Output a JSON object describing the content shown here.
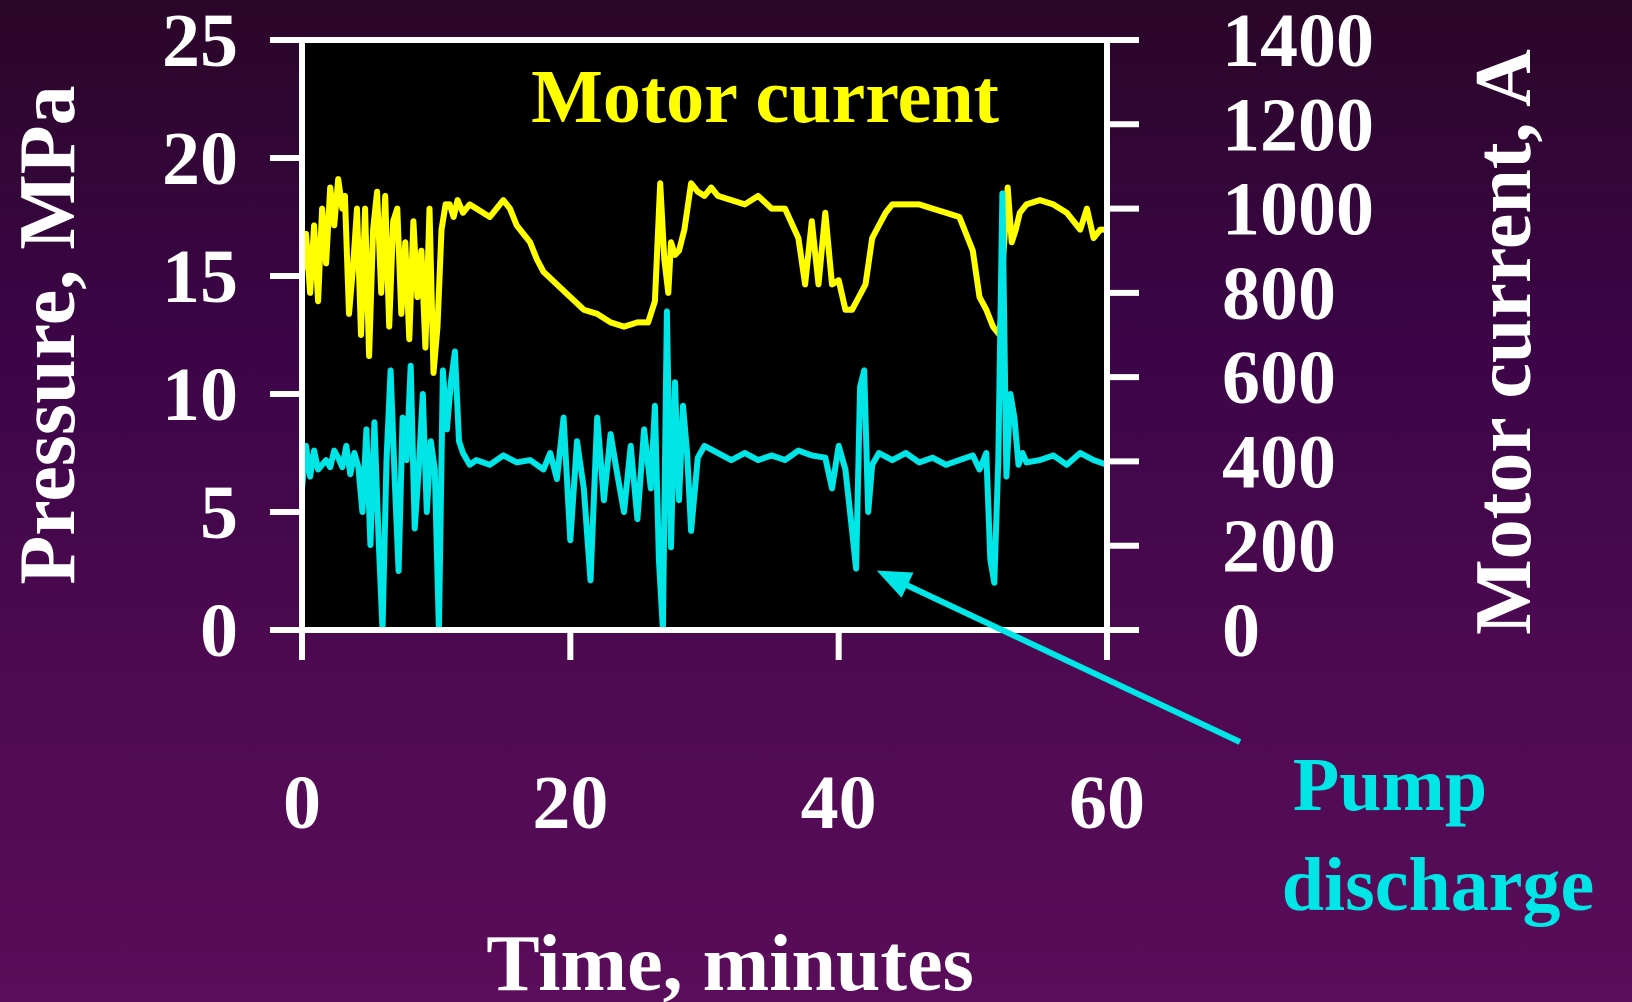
{
  "chart_data": {
    "type": "line",
    "title": "",
    "xlabel": "Time, minutes",
    "ylabel_left": "Pressure, MPa",
    "ylabel_right": "Motor current, A",
    "xlim": [
      0,
      60
    ],
    "ylim_left": [
      0,
      25
    ],
    "ylim_right": [
      0,
      1400
    ],
    "x_ticks": [
      0,
      20,
      40,
      60
    ],
    "y_ticks_left": [
      0,
      5,
      10,
      15,
      20,
      25
    ],
    "y_ticks_right": [
      0,
      200,
      400,
      600,
      800,
      1000,
      1200,
      1400
    ],
    "grid": false,
    "colors": {
      "plot_background": "#000000",
      "axes": "#ffffff",
      "text": "#ffffff",
      "motor_current": "#ffff00",
      "pump_discharge": "#00e5e5",
      "page_background": "#4a0a50"
    },
    "annotations": [
      {
        "text": "Motor current",
        "color": "#ffff00"
      },
      {
        "text_lines": [
          "Pump",
          "discharge"
        ],
        "color": "#00e5e5",
        "arrow_to": [
          41.5,
          2.6
        ]
      }
    ],
    "series": [
      {
        "name": "Motor current",
        "axis": "right",
        "color": "#ffff00",
        "x": [
          0,
          0.3,
          0.6,
          0.9,
          1.2,
          1.5,
          1.8,
          2.1,
          2.4,
          2.7,
          3.0,
          3.2,
          3.5,
          3.8,
          4.1,
          4.4,
          4.7,
          5.0,
          5.3,
          5.6,
          5.9,
          6.2,
          6.5,
          6.8,
          7.1,
          7.4,
          7.7,
          8.0,
          8.3,
          8.6,
          8.9,
          9.2,
          9.5,
          9.8,
          10.1,
          10.4,
          10.7,
          11.0,
          11.3,
          11.6,
          12.0,
          12.5,
          13.0,
          14.0,
          15.0,
          15.5,
          16.0,
          17.0,
          17.5,
          18.0,
          19.0,
          20.0,
          21.0,
          22.0,
          23.0,
          24.0,
          25.0,
          25.8,
          26.3,
          26.7,
          27.0,
          27.3,
          27.5,
          27.8,
          28.1,
          28.5,
          29.0,
          29.5,
          30.0,
          30.5,
          31.0,
          32.0,
          33.0,
          34.0,
          35.0,
          36.0,
          37.0,
          37.5,
          38.0,
          38.5,
          39.0,
          39.5,
          40.0,
          40.5,
          41.0,
          41.5,
          42.0,
          42.5,
          43.0,
          43.5,
          44.0,
          45.0,
          46.0,
          47.0,
          48.0,
          49.0,
          50.0,
          50.5,
          51.0,
          51.5,
          52.0,
          52.3,
          52.6,
          52.9,
          53.2,
          53.5,
          54.0,
          55.0,
          56.0,
          57.0,
          58.0,
          58.5,
          59.0,
          59.5,
          60.0
        ],
        "values": [
          850,
          940,
          800,
          960,
          780,
          1000,
          870,
          1050,
          960,
          1070,
          1000,
          1030,
          750,
          860,
          1000,
          700,
          1000,
          650,
          950,
          1040,
          800,
          1030,
          720,
          970,
          1000,
          750,
          920,
          690,
          970,
          790,
          900,
          670,
          1000,
          610,
          720,
          950,
          1010,
          1010,
          980,
          1020,
          990,
          1010,
          1000,
          980,
          1020,
          1000,
          960,
          920,
          880,
          850,
          820,
          790,
          760,
          750,
          730,
          720,
          730,
          730,
          780,
          1060,
          880,
          800,
          920,
          890,
          900,
          950,
          1060,
          1040,
          1030,
          1050,
          1030,
          1020,
          1010,
          1030,
          1000,
          1000,
          930,
          820,
          970,
          820,
          990,
          820,
          830,
          760,
          760,
          790,
          820,
          930,
          960,
          990,
          1010,
          1010,
          1010,
          1000,
          990,
          980,
          900,
          790,
          760,
          720,
          700,
          900,
          1050,
          920,
          950,
          990,
          1010,
          1020,
          1010,
          990,
          950,
          1000,
          930,
          950,
          950
        ]
      },
      {
        "name": "Pump discharge",
        "axis": "left",
        "color": "#00e5e5",
        "x": [
          0,
          0.3,
          0.6,
          0.9,
          1.2,
          1.5,
          1.8,
          2.1,
          2.4,
          2.7,
          3.0,
          3.3,
          3.6,
          3.9,
          4.2,
          4.5,
          4.8,
          5.1,
          5.4,
          5.7,
          6.0,
          6.3,
          6.6,
          6.9,
          7.2,
          7.5,
          7.8,
          8.1,
          8.4,
          8.7,
          9.0,
          9.3,
          9.6,
          9.9,
          10.2,
          10.5,
          10.8,
          11.1,
          11.4,
          11.7,
          12.0,
          12.5,
          13.0,
          14.0,
          15.0,
          16.0,
          17.0,
          18.0,
          18.5,
          19.0,
          19.5,
          20.0,
          20.5,
          21.0,
          21.5,
          22.0,
          22.5,
          23.0,
          23.5,
          24.0,
          24.5,
          25.0,
          25.5,
          26.0,
          26.3,
          26.6,
          26.9,
          27.2,
          27.5,
          27.8,
          28.1,
          28.4,
          28.7,
          29.0,
          29.5,
          30.0,
          31.0,
          32.0,
          33.0,
          34.0,
          35.0,
          36.0,
          37.0,
          38.0,
          39.0,
          39.5,
          40.0,
          40.5,
          41.0,
          41.3,
          41.6,
          41.9,
          42.2,
          42.5,
          43.0,
          44.0,
          45.0,
          46.0,
          47.0,
          48.0,
          49.0,
          50.0,
          50.5,
          51.0,
          51.3,
          51.6,
          51.9,
          52.2,
          52.5,
          52.8,
          53.1,
          53.4,
          53.7,
          54.0,
          55.0,
          56.0,
          57.0,
          58.0,
          59.0,
          60.0
        ],
        "values": [
          6.0,
          7.8,
          6.5,
          7.6,
          6.8,
          7.0,
          7.2,
          6.9,
          7.6,
          7.3,
          6.9,
          7.8,
          6.6,
          7.5,
          6.9,
          5.0,
          8.5,
          3.6,
          8.8,
          4.0,
          0.0,
          7.2,
          11.0,
          6.5,
          2.5,
          9.0,
          7.2,
          11.2,
          4.3,
          6.8,
          10.0,
          5.0,
          8.0,
          6.8,
          0.0,
          11.0,
          8.5,
          10.5,
          11.8,
          8.0,
          7.5,
          7.0,
          7.2,
          7.0,
          7.4,
          7.1,
          7.2,
          6.8,
          7.5,
          6.4,
          9.0,
          3.8,
          8.0,
          6.0,
          2.1,
          9.0,
          5.5,
          8.3,
          6.6,
          5.0,
          7.8,
          4.7,
          8.5,
          6.0,
          9.5,
          3.0,
          0.0,
          13.5,
          3.5,
          10.5,
          5.5,
          9.5,
          7.5,
          4.2,
          7.3,
          7.8,
          7.5,
          7.2,
          7.5,
          7.2,
          7.4,
          7.2,
          7.6,
          7.4,
          7.3,
          6.0,
          7.8,
          6.8,
          4.2,
          2.6,
          10.3,
          11.0,
          5.0,
          7.0,
          7.5,
          7.2,
          7.5,
          7.1,
          7.3,
          7.0,
          7.2,
          7.4,
          6.8,
          7.5,
          3.0,
          2.0,
          7.2,
          18.5,
          6.5,
          10.0,
          9.0,
          7.0,
          7.5,
          7.1,
          7.2,
          7.4,
          7.0,
          7.5,
          7.2,
          7.0
        ]
      }
    ]
  }
}
